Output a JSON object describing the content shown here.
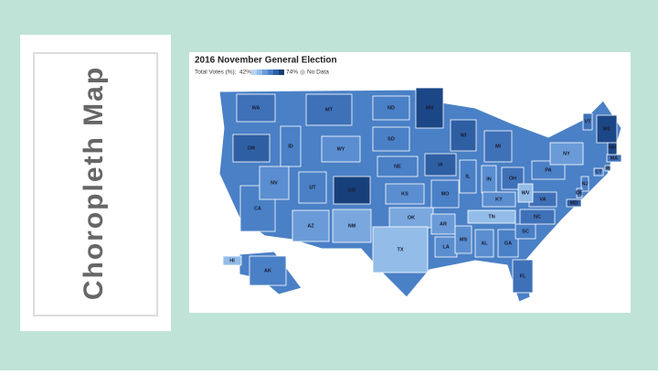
{
  "slide_title": "Choropleth Map",
  "map": {
    "title": "2016 November General Election",
    "legend": {
      "label": "Total Votes (%):",
      "min_label": "42%",
      "max_label": "74%",
      "no_data_label": "No Data"
    },
    "states": [
      {
        "label": "WA",
        "color": "#3f71b8"
      },
      {
        "label": "OR",
        "color": "#2f5fa3"
      },
      {
        "label": "CA",
        "color": "#4a80c6"
      },
      {
        "label": "ID",
        "color": "#4a80c6"
      },
      {
        "label": "NV",
        "color": "#5a8ed0"
      },
      {
        "label": "MT",
        "color": "#3f71b8"
      },
      {
        "label": "WY",
        "color": "#5a8ed0"
      },
      {
        "label": "UT",
        "color": "#4a80c6"
      },
      {
        "label": "AZ",
        "color": "#6a9bd8"
      },
      {
        "label": "NM",
        "color": "#7aa8de"
      },
      {
        "label": "CO",
        "color": "#173f7a"
      },
      {
        "label": "ND",
        "color": "#4a80c6"
      },
      {
        "label": "SD",
        "color": "#4a80c6"
      },
      {
        "label": "NE",
        "color": "#4a80c6"
      },
      {
        "label": "KS",
        "color": "#5a8ed0"
      },
      {
        "label": "OK",
        "color": "#7aa8de"
      },
      {
        "label": "TX",
        "color": "#93bde8"
      },
      {
        "label": "MN",
        "color": "#1c4787"
      },
      {
        "label": "IA",
        "color": "#2f5fa3"
      },
      {
        "label": "MO",
        "color": "#4a80c6"
      },
      {
        "label": "AR",
        "color": "#6a9bd8"
      },
      {
        "label": "LA",
        "color": "#5a8ed0"
      },
      {
        "label": "WI",
        "color": "#2f5fa3"
      },
      {
        "label": "IL",
        "color": "#4a80c6"
      },
      {
        "label": "MI",
        "color": "#3f71b8"
      },
      {
        "label": "IN",
        "color": "#5a8ed0"
      },
      {
        "label": "OH",
        "color": "#3f71b8"
      },
      {
        "label": "KY",
        "color": "#5a8ed0"
      },
      {
        "label": "TN",
        "color": "#93bde8"
      },
      {
        "label": "MS",
        "color": "#5a8ed0"
      },
      {
        "label": "AL",
        "color": "#5a8ed0"
      },
      {
        "label": "GA",
        "color": "#4a80c6"
      },
      {
        "label": "FL",
        "color": "#3f71b8"
      },
      {
        "label": "SC",
        "color": "#4a80c6"
      },
      {
        "label": "NC",
        "color": "#3f71b8"
      },
      {
        "label": "VA",
        "color": "#3f71b8"
      },
      {
        "label": "WV",
        "color": "#93bde8"
      },
      {
        "label": "PA",
        "color": "#4a80c6"
      },
      {
        "label": "NY",
        "color": "#6a9bd8"
      },
      {
        "label": "VT",
        "color": "#3f71b8"
      },
      {
        "label": "NH",
        "color": "#1c4787"
      },
      {
        "label": "ME",
        "color": "#1c4787"
      },
      {
        "label": "MA",
        "color": "#3f71b8"
      },
      {
        "label": "RI",
        "color": "#4a80c6"
      },
      {
        "label": "CT",
        "color": "#4a80c6"
      },
      {
        "label": "NJ",
        "color": "#4a80c6"
      },
      {
        "label": "DE",
        "color": "#3f71b8"
      },
      {
        "label": "MD",
        "color": "#2f5fa3"
      },
      {
        "label": "AK",
        "color": "#4a80c6"
      },
      {
        "label": "HI",
        "color": "#93bde8"
      }
    ]
  }
}
